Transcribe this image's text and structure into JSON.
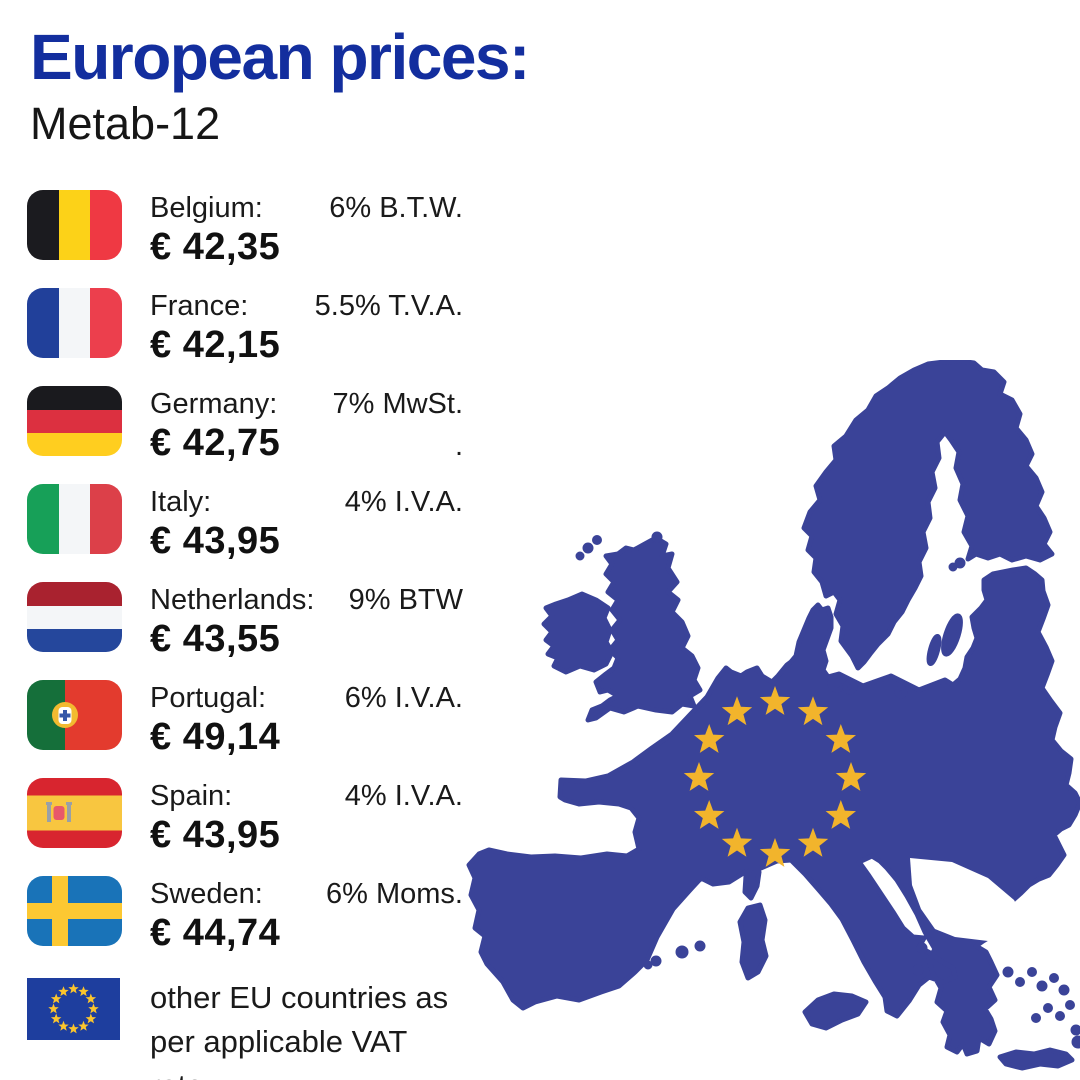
{
  "header": {
    "title": "European prices:",
    "subtitle": "Metab-12",
    "title_color": "#132e9e"
  },
  "price_list": {
    "rows": [
      {
        "icon": "flag-belgium",
        "country": "Belgium:",
        "vat": "6% B.T.W.",
        "price": "€ 42,35"
      },
      {
        "icon": "flag-france",
        "country": "France:",
        "vat": "5.5% T.V.A.",
        "price": "€ 42,15"
      },
      {
        "icon": "flag-germany",
        "country": "Germany:",
        "vat": "7% MwSt.",
        "vat_extra": ".",
        "price": "€ 42,75"
      },
      {
        "icon": "flag-italy",
        "country": "Italy:",
        "vat": "4% I.V.A.",
        "price": "€ 43,95"
      },
      {
        "icon": "flag-netherlands",
        "country": "Netherlands:",
        "vat": "9% BTW",
        "price": "€ 43,55"
      },
      {
        "icon": "flag-portugal",
        "country": "Portugal:",
        "vat": "6% I.V.A.",
        "price": "€ 49,14"
      },
      {
        "icon": "flag-spain",
        "country": "Spain:",
        "vat": "4% I.V.A.",
        "price": "€ 43,95"
      },
      {
        "icon": "flag-sweden",
        "country": "Sweden:",
        "vat": "6% Moms.",
        "price": "€ 44,74"
      }
    ],
    "footer": {
      "icon": "flag-eu",
      "line1": "other EU countries as",
      "line2": "per applicable VAT rate"
    }
  },
  "map": {
    "icon": "europe-map",
    "land_color": "#3a4398",
    "star_color": "#f2b42c",
    "star_count": 12
  }
}
